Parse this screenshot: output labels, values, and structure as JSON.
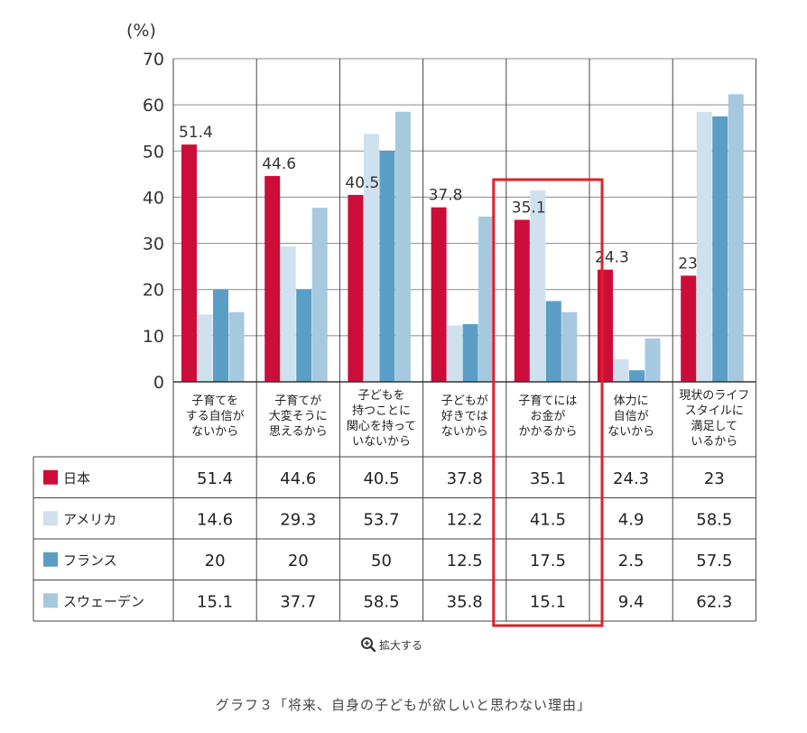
{
  "chart_data": {
    "type": "bar",
    "unit_label": "(%)",
    "ylim": [
      0,
      70
    ],
    "yticks": [
      0,
      10,
      20,
      30,
      40,
      50,
      60,
      70
    ],
    "grid": true,
    "categories": [
      [
        "子育てを",
        "する自信が",
        "ないから"
      ],
      [
        "子育てが",
        "大変そうに",
        "思えるから"
      ],
      [
        "子どもを",
        "持つことに",
        "関心を持って",
        "いないから"
      ],
      [
        "子どもが",
        "好きでは",
        "ないから"
      ],
      [
        "子育てには",
        "お金が",
        "かかるから"
      ],
      [
        "体力に",
        "自信が",
        "ないから"
      ],
      [
        "現状のライフ",
        "スタイルに",
        "満足して",
        "いるから"
      ]
    ],
    "series": [
      {
        "name": "日本",
        "color": "#cc0d3a",
        "values": [
          51.4,
          44.6,
          40.5,
          37.8,
          35.1,
          24.3,
          23
        ]
      },
      {
        "name": "アメリカ",
        "color": "#cfe1ee",
        "values": [
          14.6,
          29.3,
          53.7,
          12.2,
          41.5,
          4.9,
          58.5
        ]
      },
      {
        "name": "フランス",
        "color": "#5a9ec6",
        "values": [
          20,
          20,
          50,
          12.5,
          17.5,
          2.5,
          57.5
        ]
      },
      {
        "name": "スウェーデン",
        "color": "#a6c9df",
        "values": [
          15.1,
          37.7,
          58.5,
          35.8,
          15.1,
          9.4,
          62.3
        ]
      }
    ],
    "data_labels": [
      "51.4",
      "44.6",
      "40.5",
      "37.8",
      "35.1",
      "24.3",
      "23"
    ],
    "highlight_category": 4,
    "highlight_color": "#e0202a"
  },
  "zoom_label": "拡大する",
  "caption": "グラフ３「将来、自身の子どもが欲しいと思わない理由」"
}
